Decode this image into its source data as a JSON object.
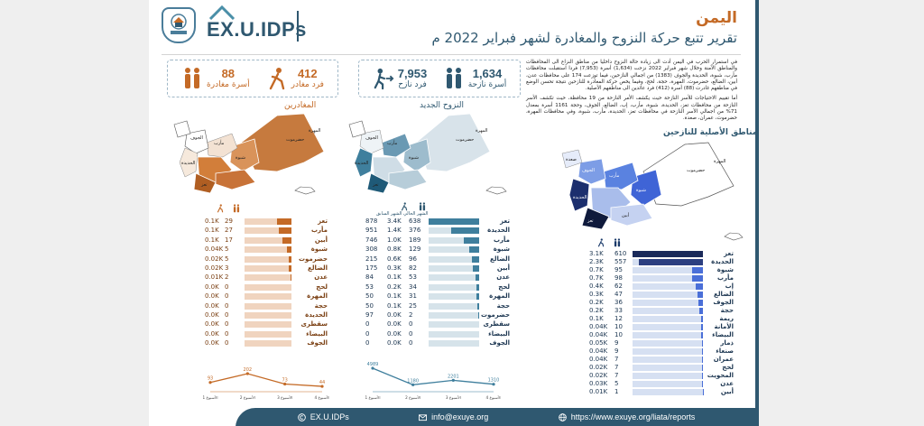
{
  "header": {
    "country": "اليمن",
    "title": "تقرير تتبع حركة النزوح والمغادرة لشهر فبراير 2022 م",
    "logo_text": "EX.U.IDPs",
    "emblem_caption": "EX.UIDPs"
  },
  "stats_left": [
    {
      "num": "412",
      "label": "فرد مغادر",
      "icon": "walking-person-icon"
    },
    {
      "num": "88",
      "label": "أسرة مغادرة",
      "icon": "family-icon"
    }
  ],
  "stats_right": [
    {
      "num": "7,953",
      "label": "فرد نازح",
      "icon": "running-person-icon"
    },
    {
      "num": "1,634",
      "label": "أسرة نازحة",
      "icon": "family-icon"
    }
  ],
  "intro": [
    "في استمرار الحرب في اليمن أدت الى زيادة حالة النزوح داخليا من مناطق النزاع الى المحافظات والمناطق الآمنة وخلال شهر فبراير 2022 نزحت (1,634) أسرة (7,953) فردا استقبلت محافظات مأرب، شبوة، الحديدة والجوف (1383) من اجمالي النازحين، فيما توزعت 174 على محافظات عدن، أبين، الضالع، حضرموت، المهرة، حجة، لحج، وفيما يخص حركة المغادرة للنازحين نتيجة تحسن الوضع في مناطقهم غادرت (88) أسرة (412) فرد عائدين الى مناطقهم الأصلية.",
    "أما تقييم الاحتياجات للأسر النازحة حيث يكشف الأمر النازحة من 19 محافظة، حيث تكشف الأسر النازحة من محافظات تعز، الحديدة، شبوة، مأرب، إب، الضالع، الجوف، وحجة 1161 أسرة بمعدل 71% من اجمالي الأسر النازحة في محافظات تعز، الحديدة، مأرب، شبوة، وفي محافظات المهرة، حضرموت، عمران، صعدة."
  ],
  "sections": {
    "departure": "المغادرين",
    "new_displacement": "النزوح الجديد",
    "origin_areas": "المناطق الأصلية للنازحين"
  },
  "departures": {
    "rows": [
      {
        "gov": "تعز",
        "fam": "29",
        "ind": "0.1K",
        "ratio": 0.3
      },
      {
        "gov": "مأرب",
        "fam": "27",
        "ind": "0.1K",
        "ratio": 0.26
      },
      {
        "gov": "أبين",
        "fam": "17",
        "ind": "0.1K",
        "ratio": 0.2
      },
      {
        "gov": "شبوة",
        "fam": "5",
        "ind": "0.04K",
        "ratio": 0.09
      },
      {
        "gov": "حضرموت",
        "fam": "5",
        "ind": "0.02K",
        "ratio": 0.05
      },
      {
        "gov": "الضالع",
        "fam": "3",
        "ind": "0.02K",
        "ratio": 0.05
      },
      {
        "gov": "عدن",
        "fam": "2",
        "ind": "0.01K",
        "ratio": 0.02
      },
      {
        "gov": "لحج",
        "fam": "0",
        "ind": "0.0K",
        "ratio": 0
      },
      {
        "gov": "المهرة",
        "fam": "0",
        "ind": "0.0K",
        "ratio": 0
      },
      {
        "gov": "حجة",
        "fam": "0",
        "ind": "0.0K",
        "ratio": 0
      },
      {
        "gov": "الحديدة",
        "fam": "0",
        "ind": "0.0K",
        "ratio": 0
      },
      {
        "gov": "سقطرى",
        "fam": "0",
        "ind": "0.0K",
        "ratio": 0
      },
      {
        "gov": "البيضاء",
        "fam": "0",
        "ind": "0.0K",
        "ratio": 0
      },
      {
        "gov": "الجوف",
        "fam": "0",
        "ind": "0.0K",
        "ratio": 0
      }
    ],
    "trend": {
      "values": [
        93,
        202,
        73,
        44
      ],
      "labels": [
        "93",
        "202",
        "73",
        "44"
      ],
      "weeks": [
        "الأسبوع 1",
        "الأسبوع 2",
        "الأسبوع 3",
        "الأسبوع 4"
      ]
    }
  },
  "displacement": {
    "rows": [
      {
        "gov": "تعز",
        "fam": "638",
        "ind": "3.4K",
        "ratio": 1.0,
        "prev": "878"
      },
      {
        "gov": "الحديدة",
        "fam": "376",
        "ind": "1.4K",
        "ratio": 0.55,
        "prev": "951"
      },
      {
        "gov": "مأرب",
        "fam": "189",
        "ind": "1.0K",
        "ratio": 0.3,
        "prev": "746"
      },
      {
        "gov": "شبوة",
        "fam": "129",
        "ind": "0.8K",
        "ratio": 0.2,
        "prev": "308"
      },
      {
        "gov": "الضالع",
        "fam": "96",
        "ind": "0.6K",
        "ratio": 0.15,
        "prev": "215"
      },
      {
        "gov": "أبين",
        "fam": "82",
        "ind": "0.3K",
        "ratio": 0.13,
        "prev": "175"
      },
      {
        "gov": "عدن",
        "fam": "53",
        "ind": "0.1K",
        "ratio": 0.08,
        "prev": "84"
      },
      {
        "gov": "لحج",
        "fam": "34",
        "ind": "0.2K",
        "ratio": 0.05,
        "prev": "53"
      },
      {
        "gov": "المهرة",
        "fam": "31",
        "ind": "0.1K",
        "ratio": 0.05,
        "prev": "50"
      },
      {
        "gov": "حجة",
        "fam": "25",
        "ind": "0.1K",
        "ratio": 0.04,
        "prev": "50"
      },
      {
        "gov": "حضرموت",
        "fam": "2",
        "ind": "0.0K",
        "ratio": 0.01,
        "prev": "97"
      },
      {
        "gov": "سقطرى",
        "fam": "0",
        "ind": "0.0K",
        "ratio": 0,
        "prev": "0"
      },
      {
        "gov": "البيضاء",
        "fam": "0",
        "ind": "0.0K",
        "ratio": 0,
        "prev": "0"
      },
      {
        "gov": "الجوف",
        "fam": "0",
        "ind": "0.0K",
        "ratio": 0,
        "prev": "0"
      }
    ],
    "trend": {
      "values": [
        4989,
        1180,
        2201,
        1310
      ],
      "labels": [
        "4989",
        "1180",
        "2201",
        "1310"
      ],
      "weeks": [
        "الأسبوع 1",
        "الأسبوع 2",
        "الأسبوع 3",
        "الأسبوع 4"
      ]
    }
  },
  "origins": {
    "rows": [
      {
        "gov": "تعز",
        "fam": "610",
        "ind": "3.1K",
        "ratio": 1.0
      },
      {
        "gov": "الحديدة",
        "fam": "557",
        "ind": "2.3K",
        "ratio": 0.91
      },
      {
        "gov": "شبوة",
        "fam": "95",
        "ind": "0.7K",
        "ratio": 0.16
      },
      {
        "gov": "مأرب",
        "fam": "98",
        "ind": "0.7K",
        "ratio": 0.16
      },
      {
        "gov": "إب",
        "fam": "62",
        "ind": "0.4K",
        "ratio": 0.1
      },
      {
        "gov": "الضالع",
        "fam": "47",
        "ind": "0.3K",
        "ratio": 0.08
      },
      {
        "gov": "الجوف",
        "fam": "36",
        "ind": "0.2K",
        "ratio": 0.06
      },
      {
        "gov": "حجة",
        "fam": "33",
        "ind": "0.2K",
        "ratio": 0.05
      },
      {
        "gov": "ريمة",
        "fam": "12",
        "ind": "0.1K",
        "ratio": 0.02
      },
      {
        "gov": "الأمانة",
        "fam": "10",
        "ind": "0.04K",
        "ratio": 0.02
      },
      {
        "gov": "البيضاء",
        "fam": "10",
        "ind": "0.04K",
        "ratio": 0.02
      },
      {
        "gov": "ذمار",
        "fam": "9",
        "ind": "0.05K",
        "ratio": 0.015
      },
      {
        "gov": "صنعاء",
        "fam": "9",
        "ind": "0.04K",
        "ratio": 0.015
      },
      {
        "gov": "عمران",
        "fam": "7",
        "ind": "0.04K",
        "ratio": 0.01
      },
      {
        "gov": "لحج",
        "fam": "7",
        "ind": "0.02K",
        "ratio": 0.01
      },
      {
        "gov": "المحويت",
        "fam": "7",
        "ind": "0.02K",
        "ratio": 0.01
      },
      {
        "gov": "عدن",
        "fam": "5",
        "ind": "0.03K",
        "ratio": 0.01
      },
      {
        "gov": "أبين",
        "fam": "1",
        "ind": "0.01K",
        "ratio": 0.005
      }
    ]
  },
  "table_headers": {
    "families_icon": "family-icon",
    "individuals_icon": "walking-person-icon",
    "prev_month": "الشهر السابق",
    "this_month": "الشهر الحالي"
  },
  "map_labels": {
    "hadramawt": "حضرموت",
    "mahra": "المهرة",
    "jawf": "الجوف",
    "marib": "مأرب",
    "shabwa": "شبوة",
    "hudaydah": "الحديدة",
    "taiz": "تعز",
    "saada": "صعدة",
    "abyan": "أبين",
    "socotra": "سقطرى"
  },
  "footer": [
    {
      "icon": "copyright-icon",
      "text": "EX.U.IDPs"
    },
    {
      "icon": "mail-icon",
      "text": "info@exuye.org"
    },
    {
      "icon": "globe-icon",
      "text": "https://www.exuye.org/liata/reports"
    }
  ],
  "colors": {
    "orange": "#c46a26",
    "orange_light": "#f0d4bf",
    "navy": "#2f5870",
    "blue_dark": "#1a3a6a",
    "blue_mid": "#4a6fd8",
    "blue_light": "#d6e0f2",
    "teal": "#3f7f9d"
  }
}
